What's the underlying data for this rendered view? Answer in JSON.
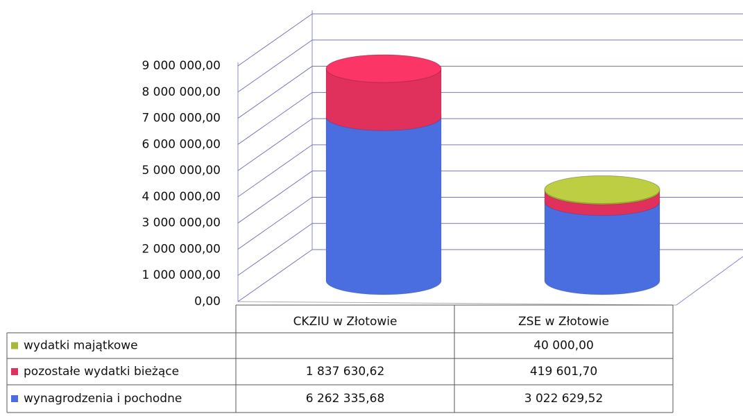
{
  "chart_data": {
    "type": "bar",
    "stacked": true,
    "categories": [
      "CKZIU w Złotowie",
      "ZSE w Złotowie"
    ],
    "series": [
      {
        "name": "wynagrodzenia i pochodne",
        "color": "#4a6ee0",
        "values": [
          6262335.68,
          3022629.52
        ],
        "value_labels": [
          "6 262 335,68",
          "3 022 629,52"
        ]
      },
      {
        "name": "pozostałe wydatki bieżące",
        "color": "#e0305c",
        "values": [
          1837630.62,
          419601.7
        ],
        "value_labels": [
          "1 837 630,62",
          "419 601,70"
        ]
      },
      {
        "name": "wydatki majątkowe",
        "color": "#a9b83c",
        "values": [
          null,
          40000
        ],
        "value_labels": [
          null,
          "40 000,00"
        ]
      }
    ],
    "ylim": [
      0,
      9000000
    ],
    "yticks": [
      {
        "value": 0,
        "label": "0,00"
      },
      {
        "value": 1000000,
        "label": "1 000 000,00"
      },
      {
        "value": 2000000,
        "label": "2 000 000,00"
      },
      {
        "value": 3000000,
        "label": "3 000 000,00"
      },
      {
        "value": 4000000,
        "label": "4 000 000,00"
      },
      {
        "value": 5000000,
        "label": "5 000 000,00"
      },
      {
        "value": 6000000,
        "label": "6 000 000,00"
      },
      {
        "value": 7000000,
        "label": "7 000 000,00"
      },
      {
        "value": 8000000,
        "label": "8 000 000,00"
      },
      {
        "value": 9000000,
        "label": "9 000 000,00"
      }
    ],
    "grid": true
  }
}
